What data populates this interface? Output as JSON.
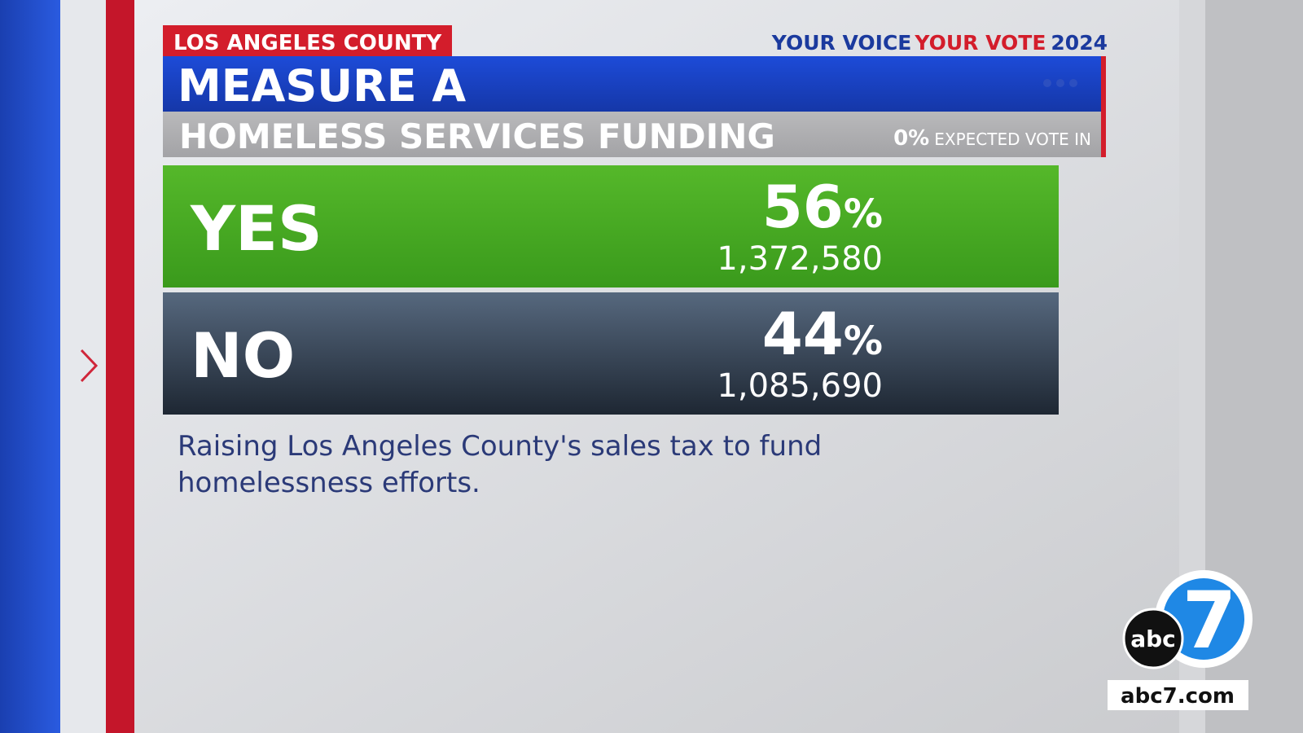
{
  "header": {
    "region": "LOS ANGELES COUNTY",
    "brand_first": "YOUR VOICE",
    "brand_second": "YOUR VOTE",
    "brand_year": "2024",
    "title": "MEASURE A",
    "subtitle": "HOMELESS SERVICES FUNDING",
    "expected_percent": "0%",
    "expected_label": "EXPECTED VOTE IN"
  },
  "results": [
    {
      "choice": "YES",
      "percent": "56",
      "percent_sign": "%",
      "votes": "1,372,580"
    },
    {
      "choice": "NO",
      "percent": "44",
      "percent_sign": "%",
      "votes": "1,085,690"
    }
  ],
  "description": [
    "Raising Los Angeles County's sales tax to fund",
    "homelessness efforts."
  ],
  "logo": {
    "wordmark": "abc",
    "number": "7",
    "url": "abc7.com"
  }
}
